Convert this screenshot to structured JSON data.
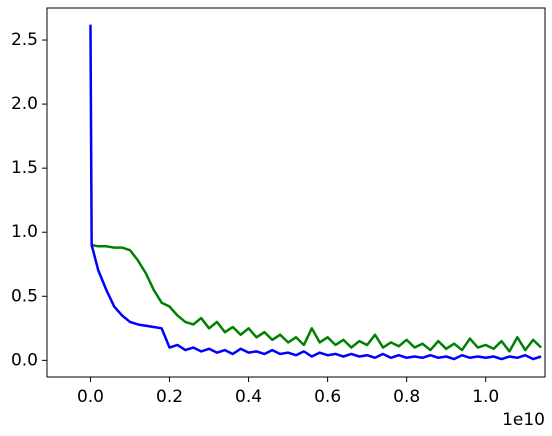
{
  "chart_data": {
    "type": "line",
    "x": [
      0,
      0.003,
      0.02,
      0.04,
      0.06,
      0.08,
      0.1,
      0.12,
      0.14,
      0.16,
      0.18,
      0.2,
      0.22,
      0.24,
      0.26,
      0.28,
      0.3,
      0.32,
      0.34,
      0.36,
      0.38,
      0.4,
      0.42,
      0.44,
      0.46,
      0.48,
      0.5,
      0.52,
      0.54,
      0.56,
      0.58,
      0.6,
      0.62,
      0.64,
      0.66,
      0.68,
      0.7,
      0.72,
      0.74,
      0.76,
      0.78,
      0.8,
      0.82,
      0.84,
      0.86,
      0.88,
      0.9,
      0.92,
      0.94,
      0.96,
      0.98,
      1.0,
      1.02,
      1.04,
      1.06,
      1.08,
      1.1,
      1.12,
      1.14
    ],
    "series": [
      {
        "color": "#008000",
        "values": [
          0.9,
          0.9,
          0.89,
          0.89,
          0.88,
          0.88,
          0.86,
          0.78,
          0.68,
          0.55,
          0.45,
          0.42,
          0.35,
          0.3,
          0.28,
          0.33,
          0.25,
          0.3,
          0.22,
          0.26,
          0.2,
          0.25,
          0.18,
          0.22,
          0.16,
          0.2,
          0.14,
          0.18,
          0.12,
          0.25,
          0.14,
          0.18,
          0.12,
          0.16,
          0.1,
          0.15,
          0.12,
          0.2,
          0.1,
          0.14,
          0.11,
          0.16,
          0.1,
          0.13,
          0.08,
          0.15,
          0.09,
          0.13,
          0.08,
          0.17,
          0.1,
          0.12,
          0.09,
          0.15,
          0.07,
          0.18,
          0.08,
          0.16,
          0.1
        ]
      },
      {
        "color": "#0000ff",
        "values": [
          2.62,
          0.9,
          0.7,
          0.55,
          0.42,
          0.35,
          0.3,
          0.28,
          0.27,
          0.26,
          0.25,
          0.1,
          0.12,
          0.08,
          0.1,
          0.07,
          0.09,
          0.06,
          0.08,
          0.05,
          0.09,
          0.06,
          0.07,
          0.05,
          0.08,
          0.05,
          0.06,
          0.04,
          0.07,
          0.03,
          0.06,
          0.04,
          0.05,
          0.03,
          0.05,
          0.03,
          0.04,
          0.02,
          0.05,
          0.02,
          0.04,
          0.02,
          0.03,
          0.02,
          0.04,
          0.02,
          0.03,
          0.01,
          0.04,
          0.02,
          0.03,
          0.02,
          0.03,
          0.01,
          0.03,
          0.02,
          0.04,
          0.01,
          0.03
        ]
      }
    ],
    "xlim": [
      -0.11,
      1.15
    ],
    "ylim": [
      -0.13,
      2.75
    ],
    "xticks": [
      {
        "value": 0,
        "label": "0.0"
      },
      {
        "value": 0.2,
        "label": "0.2"
      },
      {
        "value": 0.4,
        "label": "0.4"
      },
      {
        "value": 0.6,
        "label": "0.6"
      },
      {
        "value": 0.8,
        "label": "0.8"
      },
      {
        "value": 1,
        "label": "1.0"
      }
    ],
    "yticks": [
      {
        "value": 0,
        "label": "0.0"
      },
      0.5,
      {
        "value": 1,
        "label": "1.0"
      },
      1.5,
      {
        "value": 2,
        "label": "2.0"
      },
      2.5
    ],
    "x_offset_label": "1e10",
    "grid": false
  }
}
